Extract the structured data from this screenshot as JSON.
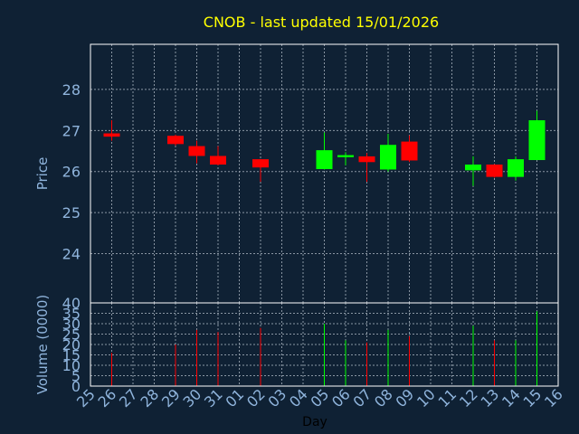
{
  "chart_data": {
    "type": "candlestick",
    "title": "CNOB - last updated 15/01/2026",
    "xlabel": "Day",
    "x_tick_labels": [
      "25",
      "26",
      "27",
      "28",
      "29",
      "30",
      "31",
      "01",
      "02",
      "03",
      "04",
      "05",
      "06",
      "07",
      "08",
      "09",
      "10",
      "11",
      "12",
      "13",
      "14",
      "15",
      "16"
    ],
    "price_panel": {
      "ylabel": "Price",
      "ylim": [
        22.8,
        29.1
      ],
      "yticks": [
        24,
        25,
        26,
        27,
        28
      ],
      "grid": true,
      "candles": [
        {
          "x": "26",
          "open": 26.93,
          "high": 27.25,
          "low": 26.75,
          "close": 26.85
        },
        {
          "x": "29",
          "open": 26.87,
          "high": 26.9,
          "low": 26.63,
          "close": 26.67
        },
        {
          "x": "30",
          "open": 26.62,
          "high": 26.75,
          "low": 26.2,
          "close": 26.38
        },
        {
          "x": "31",
          "open": 26.38,
          "high": 26.62,
          "low": 26.15,
          "close": 26.17
        },
        {
          "x": "02",
          "open": 26.3,
          "high": 26.3,
          "low": 25.75,
          "close": 26.1
        },
        {
          "x": "05",
          "open": 26.06,
          "high": 26.95,
          "low": 26.05,
          "close": 26.52
        },
        {
          "x": "06",
          "open": 26.35,
          "high": 26.47,
          "low": 26.15,
          "close": 26.4
        },
        {
          "x": "07",
          "open": 26.37,
          "high": 26.45,
          "low": 25.75,
          "close": 26.23
        },
        {
          "x": "08",
          "open": 26.05,
          "high": 26.92,
          "low": 26.0,
          "close": 26.65
        },
        {
          "x": "09",
          "open": 26.73,
          "high": 26.88,
          "low": 26.23,
          "close": 26.27
        },
        {
          "x": "12",
          "open": 26.03,
          "high": 26.37,
          "low": 25.65,
          "close": 26.17
        },
        {
          "x": "13",
          "open": 26.17,
          "high": 26.18,
          "low": 25.85,
          "close": 25.87
        },
        {
          "x": "14",
          "open": 25.87,
          "high": 26.37,
          "low": 25.78,
          "close": 26.3
        },
        {
          "x": "15",
          "open": 26.28,
          "high": 27.48,
          "low": 26.28,
          "close": 27.25
        }
      ]
    },
    "volume_panel": {
      "ylabel": "Volume (0000)",
      "ylim": [
        0,
        40
      ],
      "yticks": [
        0,
        5,
        10,
        15,
        20,
        25,
        30,
        35,
        40
      ],
      "grid": true,
      "bars": [
        {
          "x": "26",
          "value": 16,
          "direction": "down"
        },
        {
          "x": "29",
          "value": 20,
          "direction": "down"
        },
        {
          "x": "30",
          "value": 27,
          "direction": "down"
        },
        {
          "x": "31",
          "value": 26,
          "direction": "down"
        },
        {
          "x": "02",
          "value": 28,
          "direction": "down"
        },
        {
          "x": "05",
          "value": 30,
          "direction": "up"
        },
        {
          "x": "06",
          "value": 22,
          "direction": "up"
        },
        {
          "x": "07",
          "value": 21,
          "direction": "down"
        },
        {
          "x": "08",
          "value": 27,
          "direction": "up"
        },
        {
          "x": "09",
          "value": 24,
          "direction": "down"
        },
        {
          "x": "12",
          "value": 29,
          "direction": "up"
        },
        {
          "x": "13",
          "value": 22,
          "direction": "down"
        },
        {
          "x": "14",
          "value": 22,
          "direction": "up"
        },
        {
          "x": "15",
          "value": 36,
          "direction": "up"
        }
      ]
    },
    "colors": {
      "background": "#0f2134",
      "plot_background": "#0f2134",
      "frame": "#ffffff",
      "grid": "#8a96a3",
      "title": "#ffff00",
      "axis_text": "#8fb4dc",
      "xlabel_text": "#000000",
      "up": "#00ff00",
      "down": "#ff0000"
    }
  }
}
